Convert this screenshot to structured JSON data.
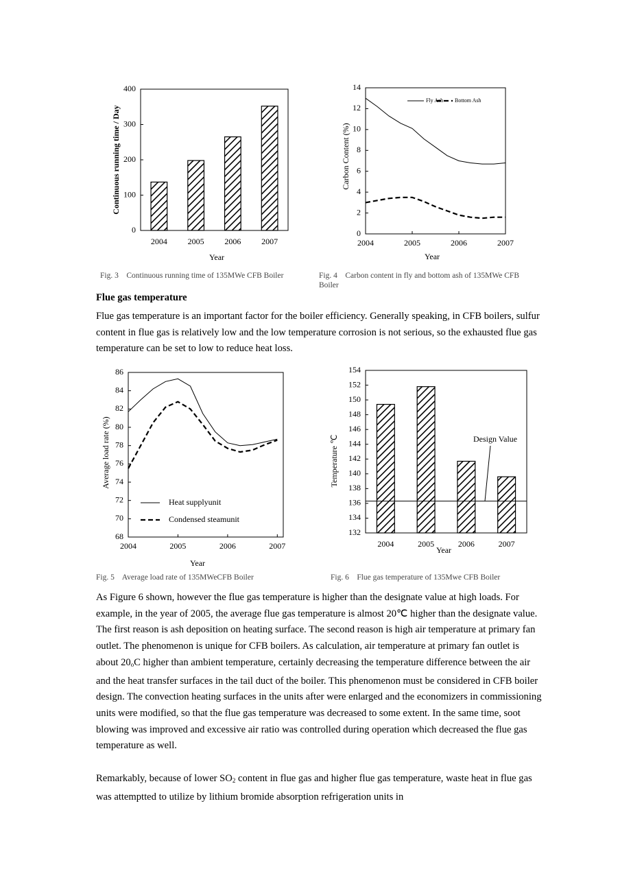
{
  "chart_data": [
    {
      "type": "bar",
      "categories": [
        "2004",
        "2005",
        "2006",
        "2007"
      ],
      "values": [
        137,
        198,
        265,
        352
      ],
      "color": "#000000",
      "hatch": true,
      "ylim": [
        0,
        400
      ],
      "yticks": [
        0,
        100,
        200,
        300,
        400
      ],
      "y_label": "Continuous running time / Day",
      "x_label": "Year",
      "caption": "Fig. 3    Continuous running time of 135MWe CFB Boiler"
    },
    {
      "type": "line",
      "x": [
        2004,
        2004.25,
        2004.5,
        2004.75,
        2005,
        2005.25,
        2005.5,
        2005.75,
        2006,
        2006.25,
        2006.5,
        2006.75,
        2007
      ],
      "xlim": [
        2004,
        2007
      ],
      "xticks": [
        2004,
        2005,
        2006,
        2007
      ],
      "ylim": [
        0,
        14
      ],
      "yticks": [
        0,
        2,
        4,
        6,
        8,
        10,
        12,
        14
      ],
      "legend": "upper right",
      "series": [
        {
          "name": "Fly Ash",
          "color": "#000000",
          "line_style": "solid",
          "values": [
            13.0,
            12.2,
            11.3,
            10.6,
            10.1,
            9.1,
            8.3,
            7.5,
            7.0,
            6.8,
            6.7,
            6.7,
            6.8
          ]
        },
        {
          "name": "Bottom Ash",
          "color": "#000000",
          "line_style": "dashed",
          "values": [
            3.0,
            3.2,
            3.4,
            3.5,
            3.5,
            3.1,
            2.6,
            2.2,
            1.8,
            1.6,
            1.5,
            1.6,
            1.6
          ]
        }
      ],
      "y_label": "Carbon Content (%)",
      "x_label": "Year",
      "caption": "Fig. 4    Carbon content in fly and bottom ash of 135MWe CFB Boiler"
    },
    {
      "type": "line",
      "x": [
        2004,
        2004.25,
        2004.5,
        2004.75,
        2005,
        2005.25,
        2005.5,
        2005.75,
        2006,
        2006.25,
        2006.5,
        2006.75,
        2007
      ],
      "xlim": [
        2004,
        2007.12
      ],
      "xticks": [
        2004,
        2005,
        2006,
        2007
      ],
      "ylim": [
        68,
        86
      ],
      "yticks": [
        68,
        70,
        72,
        74,
        76,
        78,
        80,
        82,
        84,
        86
      ],
      "legend": "lower left",
      "series": [
        {
          "name": "Heat supplyunit",
          "color": "#000000",
          "line_style": "solid",
          "values": [
            81.7,
            83.0,
            84.2,
            85.0,
            85.3,
            84.5,
            81.5,
            79.5,
            78.3,
            78.0,
            78.1,
            78.4,
            78.7
          ]
        },
        {
          "name": "Condensed steamunit",
          "color": "#000000",
          "line_style": "dashed",
          "values": [
            75.5,
            78.0,
            80.5,
            82.2,
            82.8,
            82.0,
            80.3,
            78.5,
            77.7,
            77.3,
            77.5,
            78.1,
            78.6
          ]
        }
      ],
      "y_label": "Average load rate (%)",
      "x_label": "Year",
      "caption": "Fig. 5    Average load rate of 135MWeCFB Boiler"
    },
    {
      "type": "bar",
      "categories": [
        "2004",
        "2005",
        "2006",
        "2007"
      ],
      "values": [
        149.4,
        151.8,
        141.7,
        139.6
      ],
      "color": "#000000",
      "hatch": true,
      "ylim": [
        132,
        154
      ],
      "yticks": [
        132,
        134,
        136,
        138,
        140,
        142,
        144,
        146,
        148,
        150,
        152,
        154
      ],
      "design_value": 136.3,
      "annotation": "Design Value",
      "y_label": "Temperature ℃",
      "x_label": "Year",
      "caption": "Fig. 6    Flue gas temperature of 135Mwe CFB Boiler"
    }
  ],
  "document": {
    "heading": "Flue gas temperature",
    "paragraphs": [
      [
        "Flue gas temperature is an important factor for the boiler efficiency. Generally speaking, in CFB boilers, sulfur content in flue gas is relatively low and the low temperature corrosion is not serious, so the exhausted flue gas temperature can be set to low to reduce heat loss."
      ],
      [
        "As Figure 6 shown, however the flue gas temperature is higher than the designate value at high loads. For example, in the year of 2005, the average flue gas temperature is almost 20℃  higher than the designate value. The first reason is ash deposition on heating surface. The second reason is high air temperature at primary fan outlet. The phenomenon is unique for CFB boilers. As calculation, air temperature at primary fan outlet is about 20",
        "o",
        "C higher than ambient temperature, certainly decreasing the temperature difference between the air and the heat transfer surfaces in the tail duct of the boiler. This phenomenon must be considered in CFB boiler design. The convection heating surfaces in the units after were enlarged and the economizers in commissioning units were modified, so that the flue gas temperature was decreased to some extent. In the same time, soot blowing was improved and excessive air ratio was controlled during operation which decreased the flue gas temperature as well."
      ],
      [
        "Remarkably, because of lower SO",
        "2",
        " content in flue gas and higher flue gas temperature, waste heat in flue gas was attemptted to utilize by lithium bromide absorption refrigeration units in"
      ]
    ]
  }
}
